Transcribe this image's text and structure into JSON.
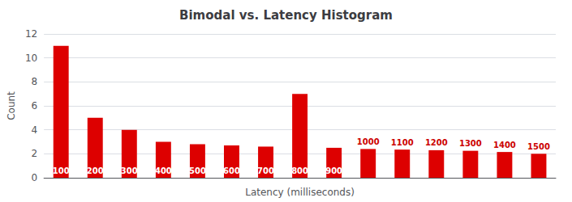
{
  "chart_data": {
    "type": "bar",
    "title": "Bimodal vs. Latency Histogram",
    "xlabel": "Latency (milliseconds)",
    "ylabel": "Count",
    "categories": [
      100,
      200,
      300,
      400,
      500,
      600,
      700,
      800,
      900,
      1000,
      1100,
      1200,
      1300,
      1400,
      1500
    ],
    "values": [
      11,
      5,
      4,
      3,
      2.8,
      2.7,
      2.6,
      7,
      2.5,
      2.4,
      2.35,
      2.3,
      2.25,
      2.15,
      2.0
    ],
    "color": "#dd0000",
    "annotations": [
      {
        "category": 100,
        "text": "100",
        "color": "#ffffff",
        "position": "inside"
      },
      {
        "category": 200,
        "text": "200",
        "color": "#ffffff",
        "position": "inside"
      },
      {
        "category": 300,
        "text": "300",
        "color": "#ffffff",
        "position": "inside"
      },
      {
        "category": 400,
        "text": "400",
        "color": "#ffffff",
        "position": "inside"
      },
      {
        "category": 500,
        "text": "500",
        "color": "#ffffff",
        "position": "inside"
      },
      {
        "category": 600,
        "text": "600",
        "color": "#ffffff",
        "position": "inside"
      },
      {
        "category": 700,
        "text": "700",
        "color": "#ffffff",
        "position": "inside"
      },
      {
        "category": 800,
        "text": "800",
        "color": "#ffffff",
        "position": "inside"
      },
      {
        "category": 900,
        "text": "900",
        "color": "#ffffff",
        "position": "inside"
      },
      {
        "category": 1000,
        "text": "1000",
        "color": "#cc0000",
        "position": "above"
      },
      {
        "category": 1100,
        "text": "1100",
        "color": "#cc0000",
        "position": "above"
      },
      {
        "category": 1200,
        "text": "1200",
        "color": "#cc0000",
        "position": "above"
      },
      {
        "category": 1300,
        "text": "1300",
        "color": "#cc0000",
        "position": "above"
      },
      {
        "category": 1400,
        "text": "1400",
        "color": "#cc0000",
        "position": "above"
      },
      {
        "category": 1500,
        "text": "1500",
        "color": "#cc0000",
        "position": "above"
      }
    ],
    "ylim": [
      0,
      12
    ],
    "yticks": [
      0,
      2,
      4,
      6,
      8,
      10,
      12
    ],
    "grid": true,
    "tick_labels": "y"
  }
}
